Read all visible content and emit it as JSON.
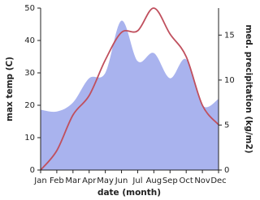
{
  "chart_data": {
    "type": "line-area",
    "x_label": "date (month)",
    "y_label": "max temp (C)",
    "y2_label": "med. precipitation (kg/m2)",
    "categories": [
      "Jan",
      "Feb",
      "Mar",
      "Apr",
      "May",
      "Jun",
      "Jul",
      "Aug",
      "Sep",
      "Oct",
      "Nov",
      "Dec"
    ],
    "series": [
      {
        "name": "max temp",
        "color": "#c0505e",
        "values": [
          0,
          6,
          17,
          23,
          34,
          42.5,
          43,
          50,
          42,
          35,
          20,
          14
        ]
      },
      {
        "name": "med. precipitation",
        "color": "#a9b3ee",
        "axis": "y2",
        "values": [
          6.7,
          6.5,
          7.5,
          10.2,
          10.8,
          16.6,
          12.1,
          13,
          10.2,
          12.3,
          7.2,
          7.9
        ]
      }
    ],
    "ylim": [
      0,
      50
    ],
    "yticks": [
      0,
      10,
      20,
      30,
      40,
      50
    ],
    "y2lim": [
      0,
      18
    ],
    "y2ticks": [
      0,
      5,
      10,
      15
    ]
  }
}
